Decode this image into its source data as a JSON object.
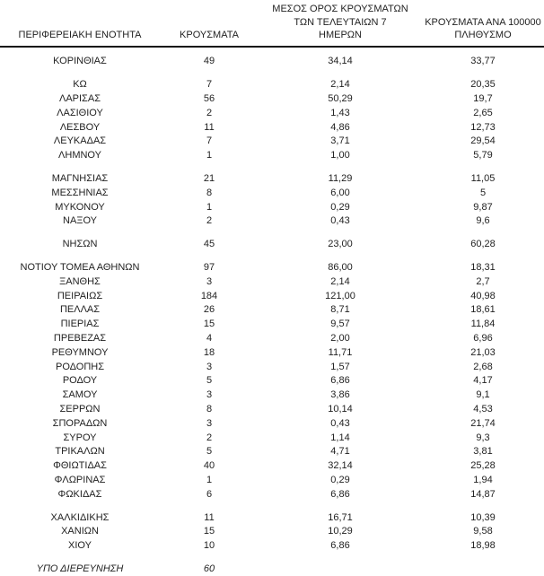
{
  "table": {
    "header": {
      "col1": "ΠΕΡΙΦΕΡΕΙΑΚΗ ΕΝΟΤΗΤΑ",
      "col2": "ΚΡΟΥΣΜΑΤΑ",
      "col3_line1": "ΜΕΣΟΣ ΟΡΟΣ ΚΡΟΥΣΜΑΤΩΝ",
      "col3_line2": "ΤΩΝ ΤΕΛΕΥΤΑΙΩΝ 7",
      "col3_line3": "ΗΜΕΡΩΝ",
      "col4_line1": "ΚΡΟΥΣΜΑΤΑ ΑΝΑ 100000",
      "col4_line2": "ΠΛΗΘΥΣΜΟ"
    },
    "groups": [
      {
        "style": "normal",
        "rows": [
          {
            "region": "ΚΟΡΙΝΘΙΑΣ",
            "cases": "49",
            "avg7": "34,14",
            "per100k": "33,77"
          }
        ]
      },
      {
        "style": "normal",
        "rows": [
          {
            "region": "ΚΩ",
            "cases": "7",
            "avg7": "2,14",
            "per100k": "20,35"
          },
          {
            "region": "ΛΑΡΙΣΑΣ",
            "cases": "56",
            "avg7": "50,29",
            "per100k": "19,7"
          },
          {
            "region": "ΛΑΣΙΘΙΟΥ",
            "cases": "2",
            "avg7": "1,43",
            "per100k": "2,65"
          },
          {
            "region": "ΛΕΣΒΟΥ",
            "cases": "11",
            "avg7": "4,86",
            "per100k": "12,73"
          },
          {
            "region": "ΛΕΥΚΑΔΑΣ",
            "cases": "7",
            "avg7": "3,71",
            "per100k": "29,54"
          },
          {
            "region": "ΛΗΜΝΟΥ",
            "cases": "1",
            "avg7": "1,00",
            "per100k": "5,79"
          }
        ]
      },
      {
        "style": "normal",
        "rows": [
          {
            "region": "ΜΑΓΝΗΣΙΑΣ",
            "cases": "21",
            "avg7": "11,29",
            "per100k": "11,05"
          },
          {
            "region": "ΜΕΣΣΗΝΙΑΣ",
            "cases": "8",
            "avg7": "6,00",
            "per100k": "5"
          },
          {
            "region": "ΜΥΚΟΝΟΥ",
            "cases": "1",
            "avg7": "0,29",
            "per100k": "9,87"
          },
          {
            "region": "ΝΑΞΟΥ",
            "cases": "2",
            "avg7": "0,43",
            "per100k": "9,6"
          }
        ]
      },
      {
        "style": "normal",
        "rows": [
          {
            "region": "ΝΗΣΩΝ",
            "cases": "45",
            "avg7": "23,00",
            "per100k": "60,28"
          }
        ]
      },
      {
        "style": "normal",
        "rows": [
          {
            "region": "ΝΟΤΙΟΥ ΤΟΜΕΑ ΑΘΗΝΩΝ",
            "cases": "97",
            "avg7": "86,00",
            "per100k": "18,31"
          },
          {
            "region": "ΞΑΝΘΗΣ",
            "cases": "3",
            "avg7": "2,14",
            "per100k": "2,7"
          },
          {
            "region": "ΠΕΙΡΑΙΩΣ",
            "cases": "184",
            "avg7": "121,00",
            "per100k": "40,98"
          },
          {
            "region": "ΠΕΛΛΑΣ",
            "cases": "26",
            "avg7": "8,71",
            "per100k": "18,61"
          },
          {
            "region": "ΠΙΕΡΙΑΣ",
            "cases": "15",
            "avg7": "9,57",
            "per100k": "11,84"
          },
          {
            "region": "ΠΡΕΒΕΖΑΣ",
            "cases": "4",
            "avg7": "2,00",
            "per100k": "6,96"
          },
          {
            "region": "ΡΕΘΥΜΝΟΥ",
            "cases": "18",
            "avg7": "11,71",
            "per100k": "21,03"
          },
          {
            "region": "ΡΟΔΟΠΗΣ",
            "cases": "3",
            "avg7": "1,57",
            "per100k": "2,68"
          },
          {
            "region": "ΡΟΔΟΥ",
            "cases": "5",
            "avg7": "6,86",
            "per100k": "4,17"
          },
          {
            "region": "ΣΑΜΟΥ",
            "cases": "3",
            "avg7": "3,86",
            "per100k": "9,1"
          },
          {
            "region": "ΣΕΡΡΩΝ",
            "cases": "8",
            "avg7": "10,14",
            "per100k": "4,53"
          },
          {
            "region": "ΣΠΟΡΑΔΩΝ",
            "cases": "3",
            "avg7": "0,43",
            "per100k": "21,74"
          },
          {
            "region": "ΣΥΡΟΥ",
            "cases": "2",
            "avg7": "1,14",
            "per100k": "9,3"
          },
          {
            "region": "ΤΡΙΚΑΛΩΝ",
            "cases": "5",
            "avg7": "4,71",
            "per100k": "3,81"
          },
          {
            "region": "ΦΘΙΩΤΙΔΑΣ",
            "cases": "40",
            "avg7": "32,14",
            "per100k": "25,28"
          },
          {
            "region": "ΦΛΩΡΙΝΑΣ",
            "cases": "1",
            "avg7": "0,29",
            "per100k": "1,94"
          },
          {
            "region": "ΦΩΚΙΔΑΣ",
            "cases": "6",
            "avg7": "6,86",
            "per100k": "14,87"
          }
        ]
      },
      {
        "style": "normal",
        "rows": [
          {
            "region": "ΧΑΛΚΙΔΙΚΗΣ",
            "cases": "11",
            "avg7": "16,71",
            "per100k": "10,39"
          },
          {
            "region": "ΧΑΝΙΩΝ",
            "cases": "15",
            "avg7": "10,29",
            "per100k": "9,58"
          },
          {
            "region": "ΧΙΟΥ",
            "cases": "10",
            "avg7": "6,86",
            "per100k": "18,98"
          }
        ]
      },
      {
        "style": "italic",
        "rows": [
          {
            "region": "ΥΠΟ ΔΙΕΡΕΥΝΗΣΗ",
            "cases": "60",
            "avg7": "",
            "per100k": ""
          }
        ]
      }
    ]
  },
  "colors": {
    "text": "#1f1f1f",
    "header_rule": "#111111",
    "background": "#ffffff"
  }
}
